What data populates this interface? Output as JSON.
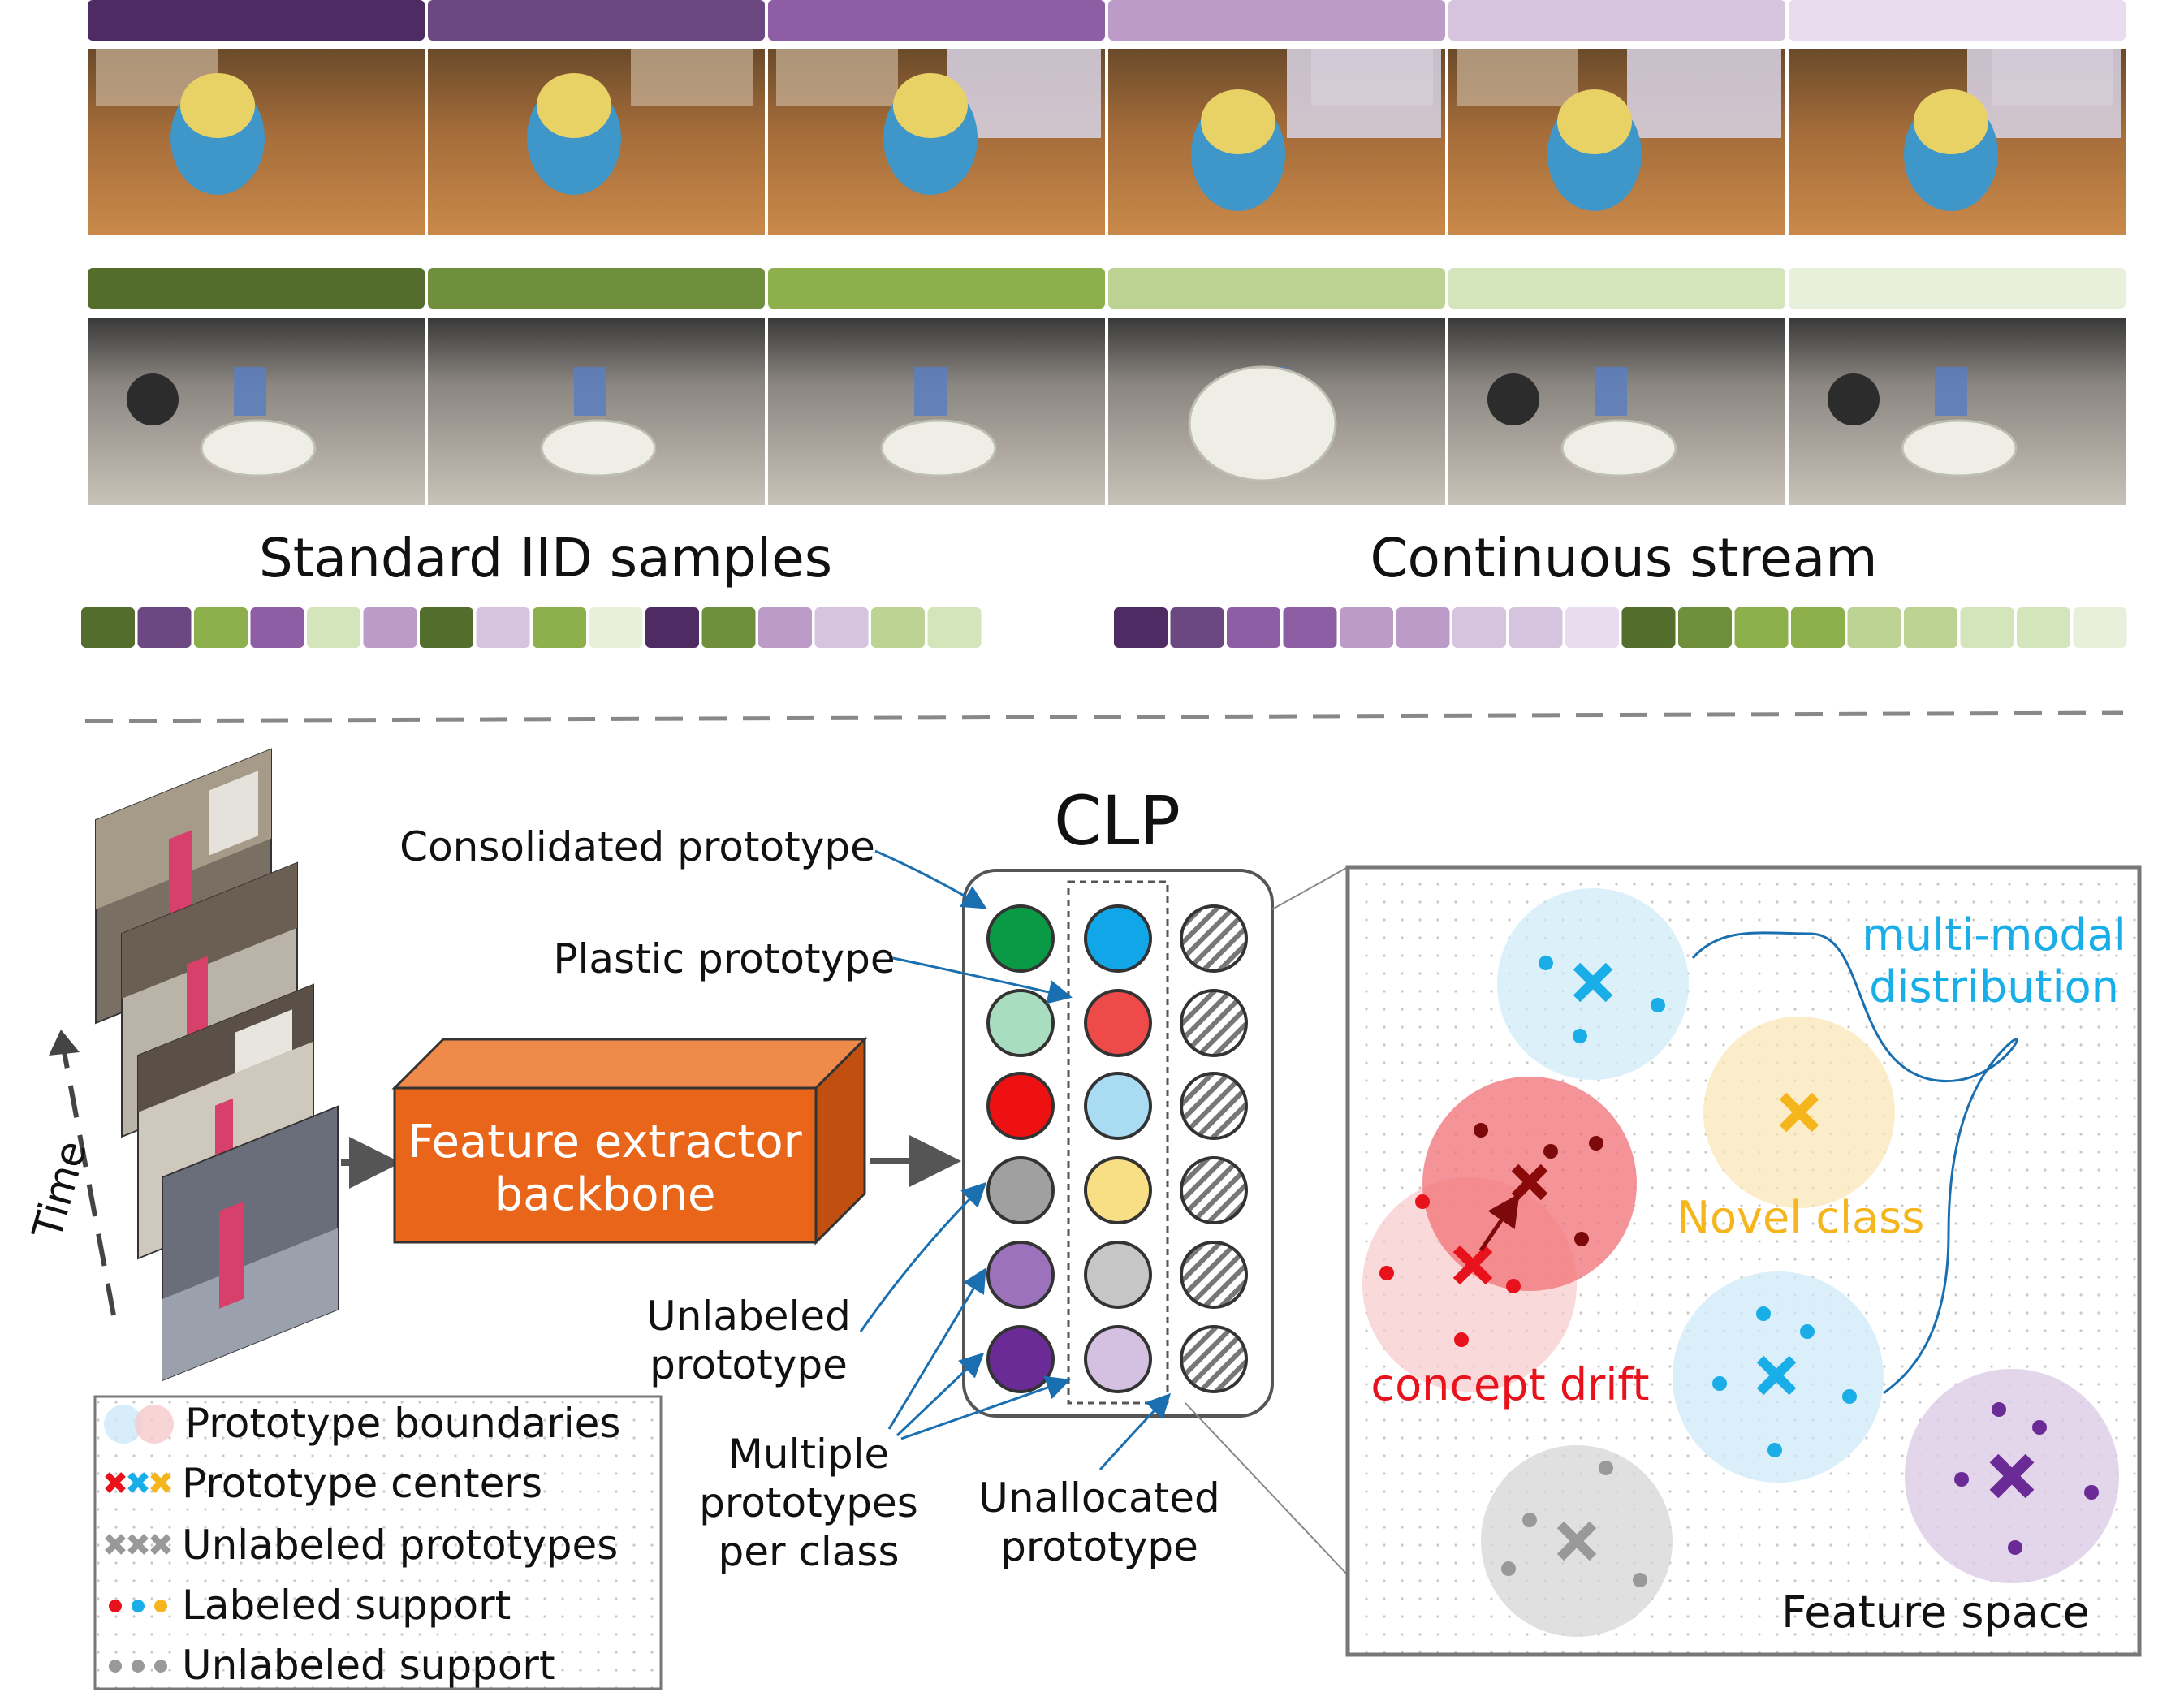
{
  "palette": {
    "purple": [
      "#4e2b63",
      "#6c4882",
      "#8e5ea5",
      "#bd9bc9",
      "#d6c4de",
      "#e8dcee"
    ],
    "green": [
      "#536d2c",
      "#6f8f3d",
      "#8db04c",
      "#bcd393",
      "#d5e5bb",
      "#e8f0dc"
    ]
  },
  "row_labels": {
    "iid": "Standard IID samples",
    "stream": "Continuous stream"
  },
  "frames": {
    "row1": [
      "minion-frame-1",
      "minion-frame-2",
      "minion-frame-3",
      "minion-frame-4",
      "minion-frame-5",
      "minion-frame-6"
    ],
    "row2": [
      "bowl-frame-1",
      "bowl-frame-2",
      "bowl-frame-3",
      "bowl-frame-4",
      "bowl-frame-5",
      "bowl-frame-6"
    ]
  },
  "iid_sequence": [
    "g0",
    "p1",
    "g2",
    "p2",
    "g4",
    "p3",
    "g0",
    "p4",
    "g2",
    "g5",
    "p0",
    "g1",
    "p3",
    "p4",
    "g3",
    "g4"
  ],
  "stream_sequence": [
    "p0",
    "p1",
    "p2",
    "p2",
    "p3",
    "p3",
    "p4",
    "p4",
    "p5",
    "g0",
    "g1",
    "g2",
    "g2",
    "g3",
    "g3",
    "g4",
    "g4",
    "g5"
  ],
  "diagram": {
    "time_label": "Time",
    "backbone_label_line1": "Feature extractor",
    "backbone_label_line2": "backbone",
    "clp_title": "CLP",
    "annotations": {
      "consolidated": "Consolidated prototype",
      "plastic": "Plastic prototype",
      "unlabeled_line1": "Unlabeled",
      "unlabeled_line2": "prototype",
      "multiple_line1": "Multiple",
      "multiple_line2": "prototypes",
      "multiple_line3": "per class",
      "unallocated_line1": "Unallocated",
      "unallocated_line2": "prototype"
    },
    "prototype_columns": {
      "col1": [
        "#0a9a45",
        "#a8ddbf",
        "#ee1111",
        "#a0a0a0",
        "#9b72bb",
        "#6a2b96"
      ],
      "col2": [
        "#11a6e8",
        "#ef4a4a",
        "#a9dbf3",
        "#f8de85",
        "#c6c6c6",
        "#d4c1e2"
      ],
      "col3": [
        "hatched",
        "hatched",
        "hatched",
        "hatched",
        "hatched",
        "hatched"
      ]
    }
  },
  "legend": {
    "boundaries": "Prototype boundaries",
    "centers": "Prototype centers",
    "unlabeled_prototypes": "Unlabeled prototypes",
    "labeled_support": "Labeled support",
    "unlabeled_support": "Unlabeled support"
  },
  "feature_space": {
    "title": "Feature space",
    "multimodal_line1": "multi-modal",
    "multimodal_line2": "distribution",
    "novel_class": "Novel class",
    "concept_drift": "concept drift",
    "colors": {
      "blue": "#19aee8",
      "yellow": "#f5b51c",
      "red": "#e8121c",
      "darkred": "#7c0a0a",
      "purple": "#6a2b96",
      "gray": "#999999"
    }
  }
}
